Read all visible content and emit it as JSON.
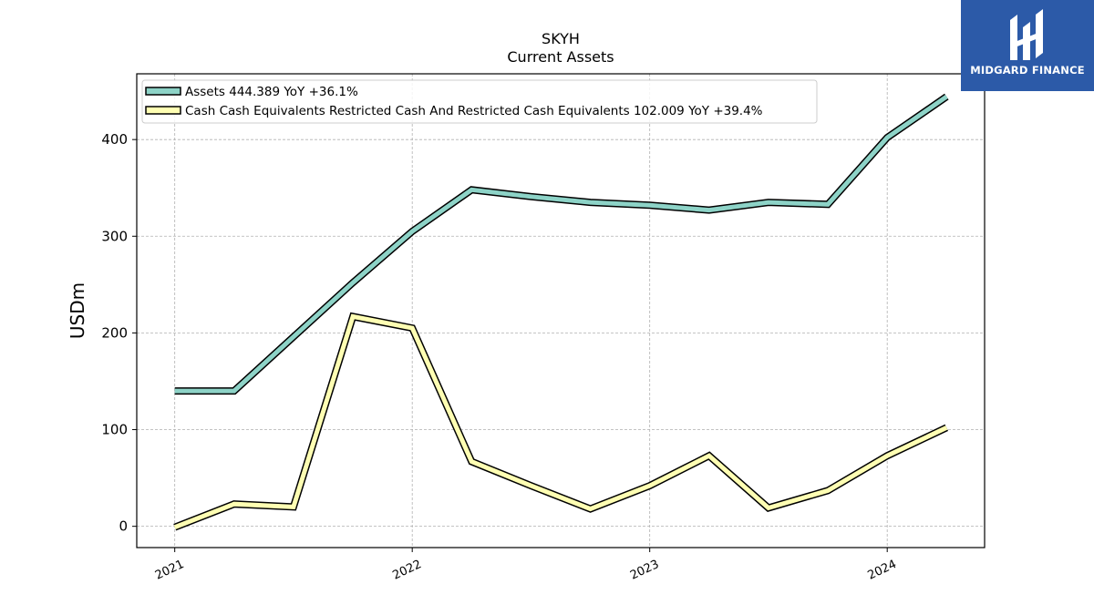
{
  "chart_data": {
    "type": "line",
    "title": "SKYH",
    "subtitle": "Current  Assets",
    "ylabel": "USDm",
    "xlabel": "",
    "ylim": [
      -22,
      468
    ],
    "xlim": [
      2020.84,
      2024.41
    ],
    "yticks": [
      0,
      100,
      200,
      300,
      400
    ],
    "xticks": [
      2021,
      2022,
      2023,
      2024
    ],
    "xtick_labels": [
      "2021",
      "2022",
      "2023",
      "2024"
    ],
    "grid": true,
    "legend_position": "top-left",
    "x": [
      2021.0,
      2021.25,
      2021.5,
      2021.75,
      2022.0,
      2022.25,
      2022.5,
      2022.75,
      2023.0,
      2023.25,
      2023.5,
      2023.75,
      2024.0,
      2024.25
    ],
    "series": [
      {
        "name": "Assets  444.389 YoY +36.1%",
        "color": "#8dd3c7",
        "values": [
          140,
          140,
          196,
          252,
          305,
          348,
          341,
          335,
          332,
          327,
          335,
          333,
          402,
          444.389
        ]
      },
      {
        "name": "Cash Cash Equivalents Restricted Cash And Restricted Cash Equivalents  102.009 YoY +39.4%",
        "color": "#ffffb3",
        "values": [
          -1,
          23,
          20,
          217,
          205,
          67,
          42,
          18,
          42,
          73,
          19,
          37,
          73,
          102.009
        ]
      }
    ]
  },
  "logo": {
    "text": "MIDGARD FINANCE",
    "background": "#2c5aa8"
  }
}
